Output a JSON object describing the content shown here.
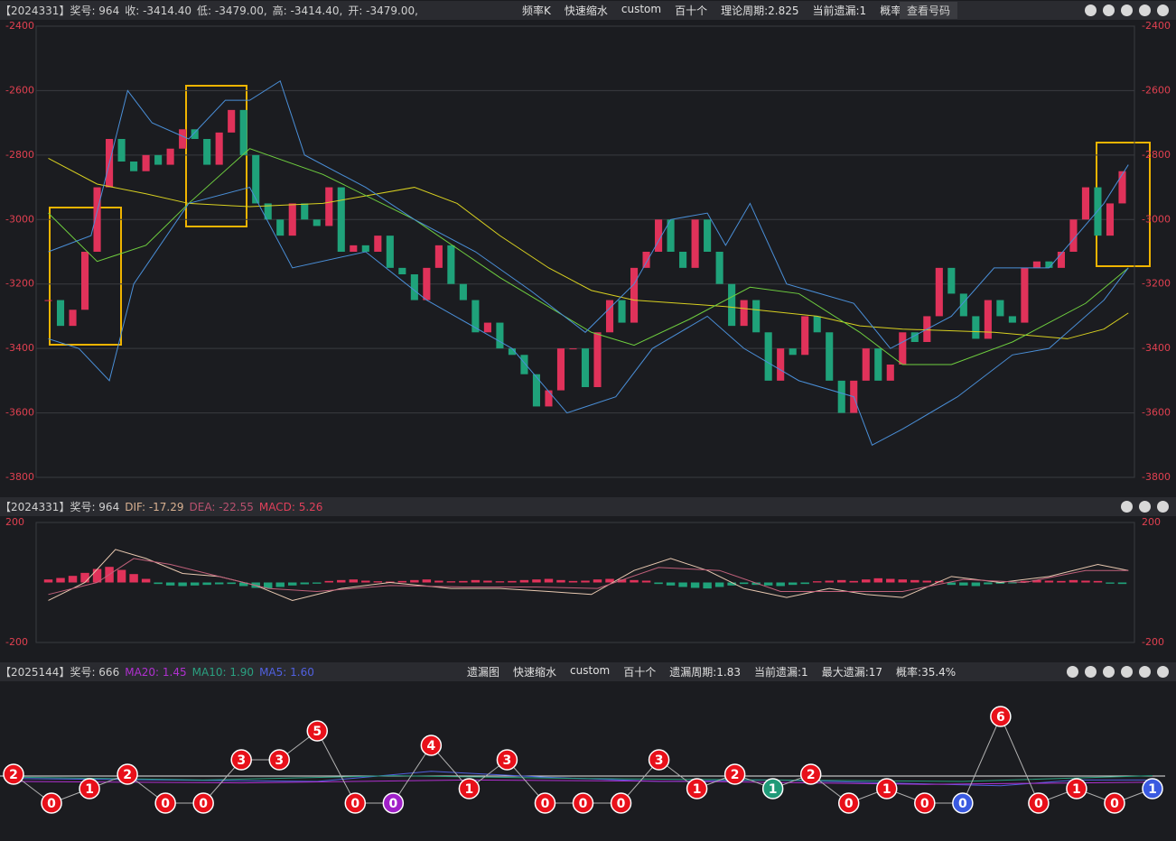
{
  "chart_data": [
    {
      "type": "candlestick",
      "title": "【2024331】奖号: 964",
      "info": [
        {
          "text": "开: -3479.00,",
          "color": "#d0d0d0"
        },
        {
          "text": "高: -3414.40,",
          "color": "#d0d0d0"
        },
        {
          "text": "低: -3479.00,",
          "color": "#d0d0d0"
        },
        {
          "text": "收: -3414.40",
          "color": "#d0d0d0"
        }
      ],
      "menu": [
        "频率K",
        "快速缩水",
        "custom",
        "百十个",
        "理论周期:2.825",
        "当前遗漏:1",
        "概率:35.4%"
      ],
      "button": "查看号码",
      "xlim": [
        -1,
        89
      ],
      "ylim": [
        -3800,
        -2400
      ],
      "yticks": [
        -2400,
        -2600,
        -2800,
        -3000,
        -3200,
        -3400,
        -3600,
        -3800
      ],
      "up_color": "#e0325a",
      "down_color": "#1fa27a",
      "values": [
        -3250,
        -3330,
        -3280,
        -3100,
        -2900,
        -2750,
        -2820,
        -2850,
        -2800,
        -2830,
        -2780,
        -2720,
        -2750,
        -2830,
        -2730,
        -2660,
        -2800,
        -2950,
        -3000,
        -3050,
        -2950,
        -3000,
        -3020,
        -2900,
        -3100,
        -3080,
        -3100,
        -3050,
        -3150,
        -3170,
        -3250,
        -3150,
        -3080,
        -3200,
        -3250,
        -3350,
        -3320,
        -3400,
        -3420,
        -3480,
        -3580,
        -3530,
        -3400,
        -3400,
        -3520,
        -3350,
        -3250,
        -3320,
        -3150,
        -3100,
        -3000,
        -3100,
        -3150,
        -3000,
        -3100,
        -3200,
        -3330,
        -3250,
        -3350,
        -3500,
        -3400,
        -3420,
        -3300,
        -3350,
        -3500,
        -3600,
        -3500,
        -3400,
        -3500,
        -3450,
        -3350,
        -3380,
        -3300,
        -3150,
        -3230,
        -3300,
        -3370,
        -3250,
        -3300,
        -3320,
        -3150,
        -3130,
        -3150,
        -3100,
        -3000,
        -2900,
        -3050,
        -2950,
        -2850
      ],
      "lines": [
        {
          "color": "#d8d020",
          "x": [
            0,
            4,
            8,
            11.5,
            16.5,
            22.5,
            30,
            33.5,
            37,
            41,
            44.5,
            48,
            55.5,
            63,
            66.5,
            70,
            77.5,
            83.5,
            86.5,
            88.5
          ],
          "values": [
            -2810,
            -2890,
            -2920,
            -2950,
            -2960,
            -2950,
            -2900,
            -2950,
            -3050,
            -3150,
            -3220,
            -3250,
            -3270,
            -3300,
            -3330,
            -3340,
            -3350,
            -3370,
            -3340,
            -3290
          ]
        },
        {
          "color": "#6fcf3f",
          "x": [
            0,
            4,
            8,
            11.5,
            16.5,
            22.5,
            30,
            37,
            44.5,
            48,
            52.5,
            57.5,
            61.5,
            66.5,
            70,
            74,
            79,
            85,
            88.5
          ],
          "values": [
            -2980,
            -3130,
            -3080,
            -2950,
            -2780,
            -2860,
            -3000,
            -3180,
            -3350,
            -3390,
            -3310,
            -3210,
            -3230,
            -3350,
            -3450,
            -3450,
            -3380,
            -3260,
            -3150
          ]
        },
        {
          "color": "#4a8fd8",
          "x": [
            0,
            3.5,
            6.5,
            8.5,
            11.5,
            14.5,
            16.5,
            19,
            21,
            26,
            30,
            35,
            39.5,
            44,
            48,
            51,
            54,
            55.5,
            57.5,
            60.5,
            66,
            69,
            74,
            77.5,
            82,
            86.5,
            88.5
          ],
          "values": [
            -3100,
            -3050,
            -2600,
            -2700,
            -2750,
            -2630,
            -2630,
            -2570,
            -2800,
            -2900,
            -3000,
            -3100,
            -3220,
            -3350,
            -3200,
            -3000,
            -2980,
            -3080,
            -2950,
            -3200,
            -3260,
            -3400,
            -3300,
            -3150,
            -3150,
            -2950,
            -2830
          ]
        },
        {
          "color": "#4a8fd8",
          "x": [
            0,
            2.5,
            5,
            7,
            11.5,
            16.5,
            20,
            26,
            31,
            38,
            42.5,
            46.5,
            49.5,
            54,
            57,
            61.5,
            66,
            67.5,
            70,
            74.5,
            79,
            82,
            86.5,
            88.5
          ],
          "values": [
            -3370,
            -3400,
            -3500,
            -3200,
            -2950,
            -2900,
            -3150,
            -3100,
            -3250,
            -3400,
            -3600,
            -3550,
            -3400,
            -3300,
            -3400,
            -3500,
            -3550,
            -3700,
            -3650,
            -3550,
            -3420,
            -3400,
            -3250,
            -3150
          ]
        }
      ]
    },
    {
      "type": "macd",
      "title": "【2024331】奖号: 964",
      "info": [
        {
          "text": "MACD: 5.26",
          "color": "#e0405a"
        },
        {
          "text": "DEA: -22.55",
          "color": "#b8506e"
        },
        {
          "text": "DIF: -17.29",
          "color": "#d8b090"
        }
      ],
      "xlim": [
        -1,
        89
      ],
      "ylim": [
        -200,
        200
      ],
      "yticks": [
        200,
        -200
      ],
      "up_color": "#e0325a",
      "down_color": "#1fa27a",
      "values": [
        10,
        15,
        22,
        32,
        45,
        52,
        42,
        28,
        12,
        -5,
        -10,
        -12,
        -10,
        -8,
        -6,
        -5,
        -12,
        -18,
        -20,
        -15,
        -10,
        -6,
        -4,
        5,
        8,
        10,
        6,
        4,
        3,
        5,
        8,
        10,
        6,
        4,
        5,
        8,
        6,
        4,
        5,
        8,
        10,
        12,
        8,
        5,
        6,
        10,
        12,
        10,
        8,
        6,
        -5,
        -10,
        -15,
        -18,
        -20,
        -15,
        -10,
        -5,
        -8,
        -10,
        -12,
        -8,
        -5,
        4,
        6,
        8,
        5,
        10,
        14,
        12,
        10,
        8,
        6,
        5,
        -8,
        -10,
        -12,
        -6,
        -4,
        -3,
        5,
        8,
        6,
        5,
        8,
        6,
        5,
        -4,
        -5
      ],
      "lines": [
        {
          "color": "#e8c8b0",
          "x": [
            0,
            3,
            5.5,
            8,
            11,
            14,
            17,
            20,
            24,
            28,
            33,
            37,
            41,
            44.5,
            48,
            51,
            54,
            57,
            60.5,
            64,
            67,
            70,
            74,
            78,
            82,
            86,
            88.5
          ],
          "values": [
            -60,
            0,
            110,
            80,
            30,
            20,
            -10,
            -60,
            -20,
            0,
            -20,
            -20,
            -30,
            -40,
            40,
            80,
            40,
            -20,
            -50,
            -20,
            -40,
            -50,
            20,
            0,
            20,
            60,
            40
          ]
        },
        {
          "color": "#c0607a",
          "x": [
            0,
            4,
            7,
            10,
            14,
            18,
            22,
            28,
            34,
            40,
            45,
            50,
            55,
            60,
            65,
            70,
            75,
            80,
            85,
            88.5
          ],
          "values": [
            -40,
            0,
            80,
            60,
            20,
            -20,
            -30,
            -10,
            -15,
            -15,
            -20,
            50,
            40,
            -30,
            -30,
            -30,
            10,
            0,
            40,
            40
          ]
        }
      ]
    },
    {
      "type": "omission",
      "title": "【2025144】奖号: 666",
      "info": [
        {
          "text": "MA5: 1.60",
          "color": "#5060e0"
        },
        {
          "text": "MA10: 1.90",
          "color": "#2aa080"
        },
        {
          "text": "MA20: 1.45",
          "color": "#b030d0"
        }
      ],
      "menu": [
        "遗漏图",
        "快速缩水",
        "custom",
        "百十个",
        "遗漏周期:1.83",
        "当前遗漏:1",
        "最大遗漏:17",
        "概率:35.4%"
      ],
      "values": [
        2,
        0,
        1,
        2,
        0,
        0,
        3,
        3,
        5,
        0,
        0,
        4,
        1,
        3,
        0,
        0,
        0,
        3,
        1,
        2,
        1,
        2,
        0,
        1,
        0,
        0,
        6,
        0,
        1,
        0,
        1
      ],
      "point_colors": [
        "#e8101a",
        "#e8101a",
        "#e8101a",
        "#e8101a",
        "#e8101a",
        "#e8101a",
        "#e8101a",
        "#e8101a",
        "#e8101a",
        "#e8101a",
        "#a020c8",
        "#e8101a",
        "#e8101a",
        "#e8101a",
        "#e8101a",
        "#e8101a",
        "#e8101a",
        "#e8101a",
        "#e8101a",
        "#e8101a",
        "#1f9a78",
        "#e8101a",
        "#e8101a",
        "#e8101a",
        "#e8101a",
        "#3a5ae0",
        "#e8101a",
        "#e8101a",
        "#e8101a",
        "#e8101a",
        "#3a5ae0"
      ],
      "lines": [
        {
          "color": "#5060e0",
          "x": [
            0,
            4,
            8,
            11,
            14,
            17,
            20,
            23,
            26,
            28,
            30
          ],
          "values": [
            1.7,
            1.6,
            1.5,
            2.2,
            1.8,
            1.5,
            1.6,
            1.4,
            1.2,
            1.6,
            1.6
          ]
        },
        {
          "color": "#2aa080",
          "x": [
            0,
            5,
            10,
            15,
            20,
            25,
            30
          ],
          "values": [
            1.8,
            1.6,
            1.9,
            1.7,
            1.6,
            1.5,
            1.9
          ]
        },
        {
          "color": "#b030d0",
          "x": [
            0,
            6,
            12,
            18,
            24,
            30
          ],
          "values": [
            1.5,
            1.4,
            1.6,
            1.5,
            1.3,
            1.45
          ]
        }
      ]
    }
  ]
}
